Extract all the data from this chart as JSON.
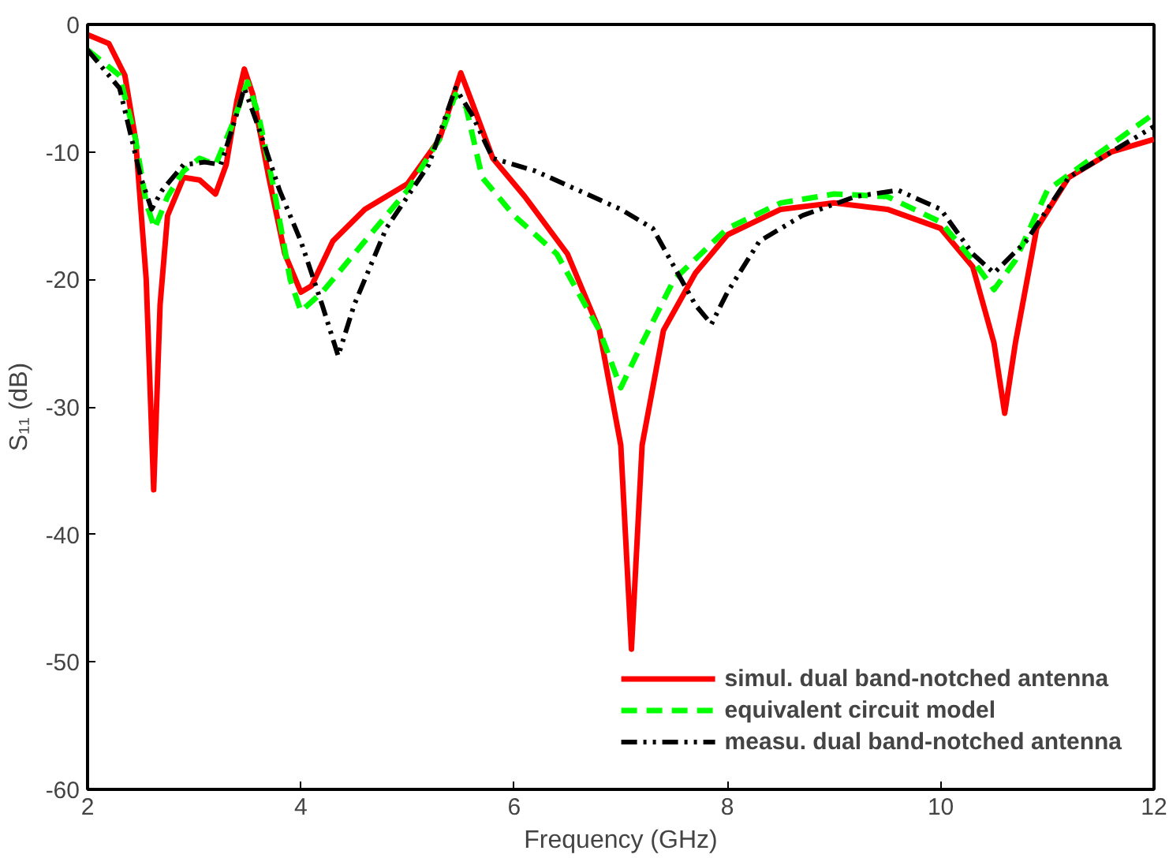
{
  "chart_data": {
    "type": "line",
    "xlabel": "Frequency (GHz)",
    "ylabel": "S₁₁ (dB)",
    "xlim": [
      2,
      12
    ],
    "ylim": [
      -60,
      0
    ],
    "xticks": [
      2,
      4,
      6,
      8,
      10,
      12
    ],
    "yticks": [
      -60,
      -50,
      -40,
      -30,
      -20,
      -10,
      0
    ],
    "grid": false,
    "legend": "bottom right",
    "marker": "none",
    "series": [
      {
        "name": "simul. dual band-notched antenna",
        "color": "#ff0000",
        "line_style": "solid",
        "x": [
          2.0,
          2.2,
          2.35,
          2.45,
          2.55,
          2.62,
          2.68,
          2.75,
          2.9,
          3.05,
          3.2,
          3.3,
          3.4,
          3.47,
          3.55,
          3.7,
          3.85,
          4.0,
          4.1,
          4.3,
          4.6,
          5.0,
          5.3,
          5.5,
          5.6,
          5.8,
          6.1,
          6.5,
          6.8,
          7.0,
          7.1,
          7.2,
          7.4,
          7.7,
          8.0,
          8.5,
          9.0,
          9.5,
          10.0,
          10.3,
          10.5,
          10.6,
          10.7,
          10.9,
          11.2,
          11.6,
          12.0
        ],
        "values": [
          -0.8,
          -1.5,
          -4,
          -9,
          -20,
          -36.5,
          -22,
          -15,
          -12,
          -12.2,
          -13.3,
          -11,
          -6,
          -3.5,
          -5.5,
          -12,
          -18,
          -21,
          -20.5,
          -17,
          -14.5,
          -12.5,
          -9,
          -3.8,
          -6,
          -10.5,
          -13.5,
          -18,
          -24,
          -33,
          -49,
          -33,
          -24,
          -19.5,
          -16.5,
          -14.5,
          -14,
          -14.5,
          -16,
          -19,
          -25,
          -30.5,
          -25,
          -16,
          -12,
          -10,
          -9
        ]
      },
      {
        "name": "equivalent circuit model",
        "color": "#00ff00",
        "line_style": "dashed",
        "x": [
          2.0,
          2.3,
          2.45,
          2.55,
          2.63,
          2.75,
          2.9,
          3.05,
          3.2,
          3.35,
          3.5,
          3.6,
          3.75,
          3.9,
          4.0,
          4.2,
          4.5,
          5.0,
          5.3,
          5.45,
          5.55,
          5.7,
          6.0,
          6.4,
          6.8,
          7.0,
          7.2,
          7.5,
          8.0,
          8.5,
          9.0,
          9.5,
          10.0,
          10.3,
          10.5,
          10.7,
          11.0,
          11.5,
          12.0
        ],
        "values": [
          -2,
          -4,
          -9,
          -14,
          -16,
          -13.5,
          -11.5,
          -10.5,
          -11,
          -8,
          -4.5,
          -7,
          -13,
          -20,
          -22.5,
          -21,
          -18,
          -13,
          -9,
          -5.5,
          -6.5,
          -12,
          -15,
          -18,
          -24,
          -28.5,
          -25,
          -20,
          -16,
          -14,
          -13.3,
          -13.5,
          -15.5,
          -18.5,
          -20.8,
          -18.5,
          -13,
          -10,
          -7
        ]
      },
      {
        "name": "measu. dual band-notched antenna",
        "color": "#000000",
        "line_style": "dashdotdot",
        "x": [
          2.0,
          2.3,
          2.5,
          2.6,
          2.7,
          2.9,
          3.1,
          3.25,
          3.4,
          3.47,
          3.6,
          3.8,
          4.0,
          4.2,
          4.35,
          4.5,
          4.8,
          5.2,
          5.45,
          5.6,
          5.8,
          6.2,
          6.6,
          7.0,
          7.3,
          7.5,
          7.7,
          7.85,
          8.0,
          8.3,
          8.7,
          9.2,
          9.6,
          10.0,
          10.3,
          10.5,
          10.8,
          11.2,
          11.6,
          12.0
        ],
        "values": [
          -2,
          -5,
          -12,
          -14.5,
          -13,
          -11,
          -10.8,
          -11,
          -7,
          -5,
          -8,
          -13,
          -17,
          -22,
          -26,
          -22,
          -16,
          -11,
          -5,
          -7,
          -10.5,
          -11.5,
          -13,
          -14.5,
          -16,
          -19,
          -22,
          -23.5,
          -21,
          -17,
          -15,
          -13.5,
          -13,
          -14.5,
          -18,
          -19.5,
          -17,
          -12,
          -10,
          -8
        ]
      }
    ]
  }
}
